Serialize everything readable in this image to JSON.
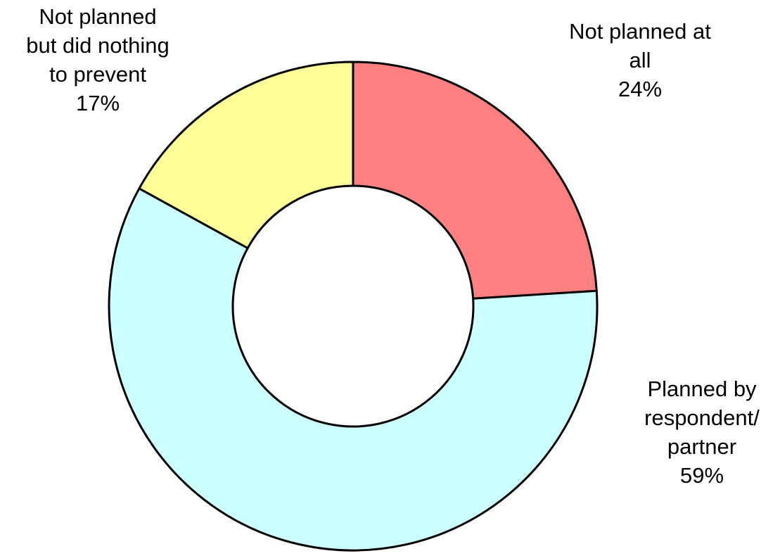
{
  "chart_data": {
    "type": "pie",
    "variant": "donut",
    "title": "",
    "series": [
      {
        "values": [
          24,
          59,
          17
        ],
        "categories": [
          "Not planned at all",
          "Planned by respondent/ partner",
          "Not planned but did nothing to prevent"
        ],
        "colors": [
          "#ff8080",
          "#ccffff",
          "#ffff99"
        ]
      }
    ],
    "data_labels": [
      {
        "lines": [
          "Not planned at",
          "all",
          "24%"
        ]
      },
      {
        "lines": [
          "Planned by",
          "respondent/",
          "partner",
          "59%"
        ]
      },
      {
        "lines": [
          "Not planned",
          "but did nothing",
          "to prevent",
          "17%"
        ]
      }
    ],
    "legend": "none"
  }
}
